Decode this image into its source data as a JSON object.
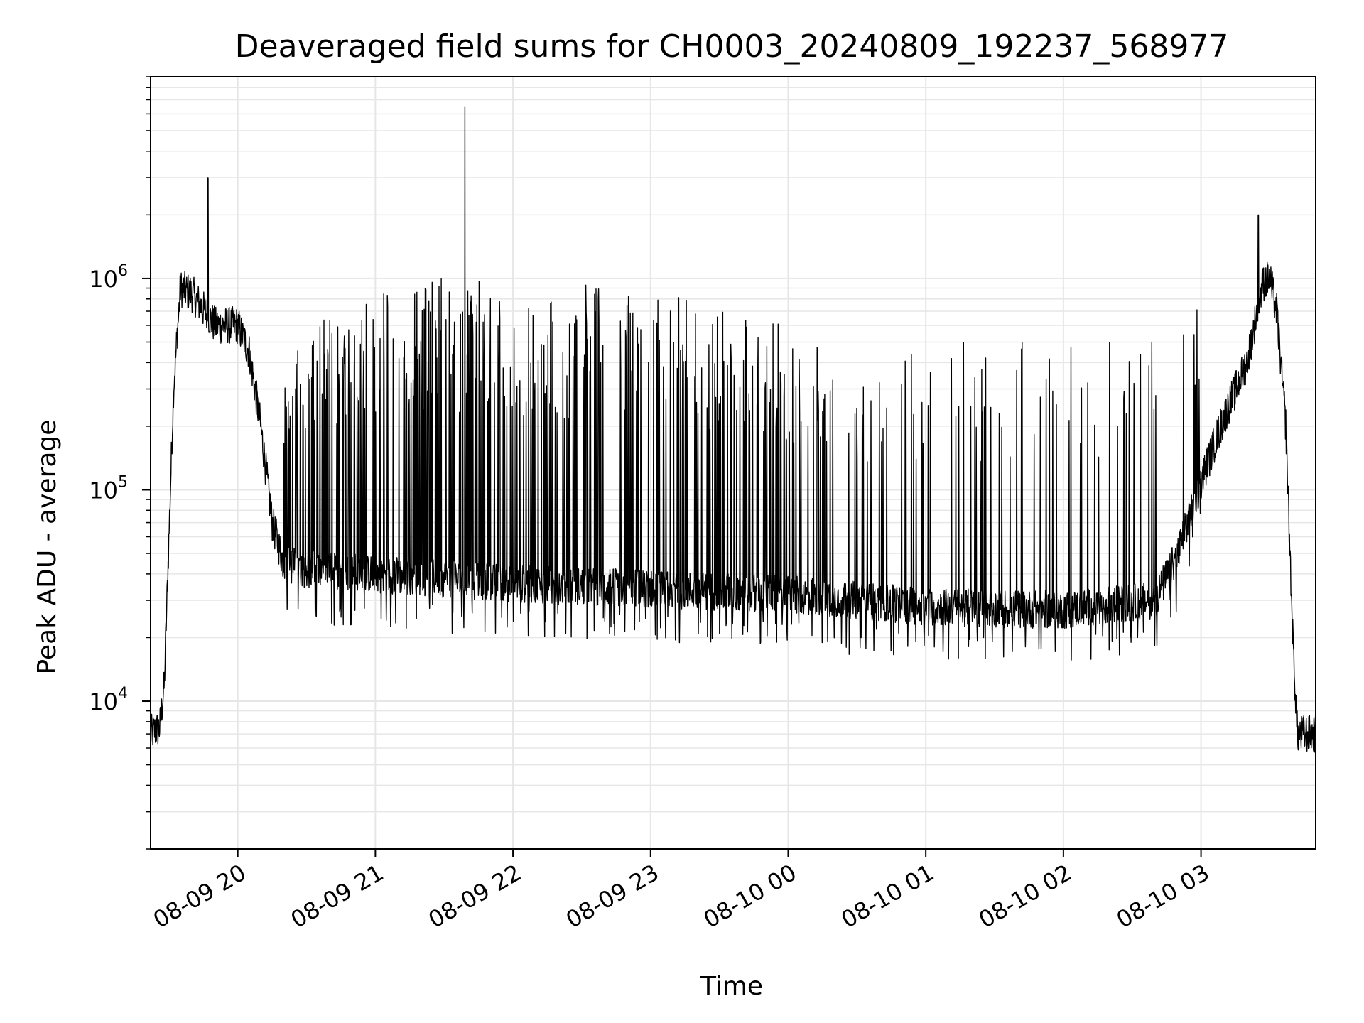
{
  "chart_data": {
    "type": "line",
    "title": "Deaveraged field sums for CH0003_20240809_192237_568977",
    "xlabel": "Time",
    "ylabel": "Peak ADU - average",
    "yscale": "log",
    "ylim": [
      2000,
      9000000
    ],
    "xlim": [
      "2024-08-09 19:22",
      "2024-08-10 03:50"
    ],
    "grid": true,
    "line_color": "#000000",
    "grid_color": "#e6e6e6",
    "x_ticks": [
      {
        "value": "2024-08-09 20:00",
        "label": "08-09 20"
      },
      {
        "value": "2024-08-09 21:00",
        "label": "08-09 21"
      },
      {
        "value": "2024-08-09 22:00",
        "label": "08-09 22"
      },
      {
        "value": "2024-08-09 23:00",
        "label": "08-09 23"
      },
      {
        "value": "2024-08-10 00:00",
        "label": "08-10 00"
      },
      {
        "value": "2024-08-10 01:00",
        "label": "08-10 01"
      },
      {
        "value": "2024-08-10 02:00",
        "label": "08-10 02"
      },
      {
        "value": "2024-08-10 03:00",
        "label": "08-10 03"
      }
    ],
    "y_ticks": [
      {
        "value": 10000,
        "base": "10",
        "exp": "4"
      },
      {
        "value": 100000,
        "base": "10",
        "exp": "5"
      },
      {
        "value": 1000000,
        "base": "10",
        "exp": "6"
      }
    ],
    "series": [
      {
        "envelope": {
          "note_x": "time",
          "baseline": [
            [
              "2024-08-09 19:22",
              7000
            ],
            [
              "2024-08-09 19:26",
              7500
            ],
            [
              "2024-08-09 19:28",
              12000
            ],
            [
              "2024-08-09 19:30",
              60000
            ],
            [
              "2024-08-09 19:32",
              300000
            ],
            [
              "2024-08-09 19:35",
              900000
            ],
            [
              "2024-08-09 19:40",
              850000
            ],
            [
              "2024-08-09 19:50",
              600000
            ],
            [
              "2024-08-09 20:00",
              600000
            ],
            [
              "2024-08-09 20:05",
              450000
            ],
            [
              "2024-08-09 20:10",
              200000
            ],
            [
              "2024-08-09 20:15",
              70000
            ],
            [
              "2024-08-09 20:20",
              45000
            ],
            [
              "2024-08-09 20:30",
              42000
            ],
            [
              "2024-08-09 21:00",
              40000
            ],
            [
              "2024-08-09 21:30",
              38000
            ],
            [
              "2024-08-09 22:00",
              36000
            ],
            [
              "2024-08-09 23:00",
              34000
            ],
            [
              "2024-08-10 00:00",
              32000
            ],
            [
              "2024-08-10 00:30",
              30000
            ],
            [
              "2024-08-10 01:00",
              28000
            ],
            [
              "2024-08-10 02:00",
              27000
            ],
            [
              "2024-08-10 02:40",
              30000
            ],
            [
              "2024-08-10 02:50",
              50000
            ],
            [
              "2024-08-10 03:00",
              110000
            ],
            [
              "2024-08-10 03:10",
              220000
            ],
            [
              "2024-08-10 03:20",
              400000
            ],
            [
              "2024-08-10 03:27",
              950000
            ],
            [
              "2024-08-10 03:30",
              1000000
            ],
            [
              "2024-08-10 03:33",
              700000
            ],
            [
              "2024-08-10 03:37",
              200000
            ],
            [
              "2024-08-10 03:40",
              20000
            ],
            [
              "2024-08-10 03:42",
              7000
            ],
            [
              "2024-08-10 03:50",
              7000
            ]
          ],
          "spike_top": [
            [
              "2024-08-09 20:20",
              400000
            ],
            [
              "2024-08-09 20:45",
              800000
            ],
            [
              "2024-08-09 21:00",
              900000
            ],
            [
              "2024-08-09 21:30",
              1000000
            ],
            [
              "2024-08-09 22:00",
              950000
            ],
            [
              "2024-08-09 22:30",
              950000
            ],
            [
              "2024-08-09 23:00",
              900000
            ],
            [
              "2024-08-09 23:30",
              750000
            ],
            [
              "2024-08-10 00:00",
              600000
            ],
            [
              "2024-08-10 00:20",
              450000
            ],
            [
              "2024-08-10 01:00",
              500000
            ],
            [
              "2024-08-10 02:00",
              500000
            ],
            [
              "2024-08-10 02:40",
              600000
            ],
            [
              "2024-08-10 03:00",
              800000
            ]
          ],
          "peaks": [
            [
              "2024-08-09 19:47",
              3000000
            ],
            [
              "2024-08-09 21:39",
              6500000
            ],
            [
              "2024-08-10 03:25",
              2000000
            ]
          ]
        }
      }
    ]
  }
}
